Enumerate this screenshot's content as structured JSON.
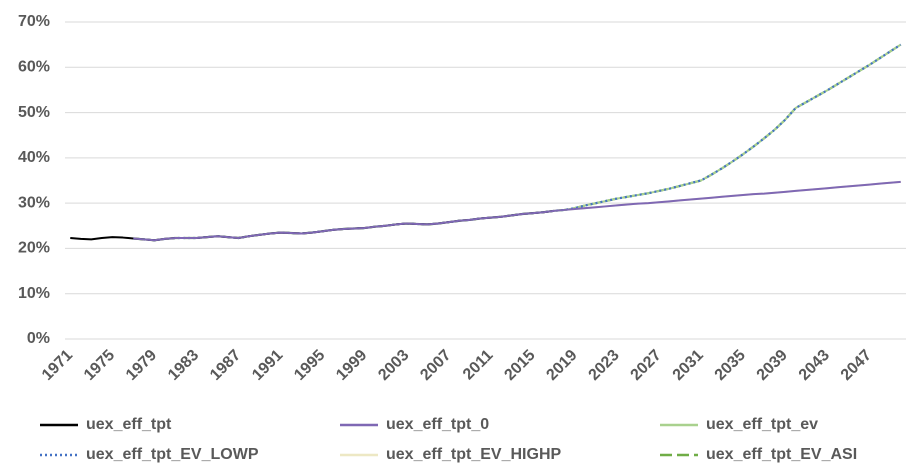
{
  "chart_data": {
    "type": "line",
    "categories": [
      "1971",
      null,
      null,
      null,
      "1975",
      null,
      null,
      null,
      "1979",
      null,
      null,
      null,
      "1983",
      null,
      null,
      null,
      "1987",
      null,
      null,
      null,
      "1991",
      null,
      null,
      null,
      "1995",
      null,
      null,
      null,
      "1999",
      null,
      null,
      null,
      "2003",
      null,
      null,
      null,
      "2007",
      null,
      null,
      null,
      "2011",
      null,
      null,
      null,
      "2015",
      null,
      null,
      null,
      "2019",
      null,
      null,
      null,
      "2023",
      null,
      null,
      null,
      "2027",
      null,
      null,
      null,
      "2031",
      null,
      null,
      null,
      "2035",
      null,
      null,
      null,
      "2039",
      null,
      null,
      null,
      "2043",
      null,
      null,
      null,
      "2047",
      null,
      null,
      null
    ],
    "ylim": [
      0,
      70
    ],
    "yticks": [
      {
        "value": 0,
        "label": "0%"
      },
      {
        "value": 10,
        "label": "10%"
      },
      {
        "value": 20,
        "label": "20%"
      },
      {
        "value": 30,
        "label": "30%"
      },
      {
        "value": 40,
        "label": "40%"
      },
      {
        "value": 50,
        "label": "50%"
      },
      {
        "value": 60,
        "label": "60%"
      },
      {
        "value": 70,
        "label": "70%"
      }
    ],
    "grid": true,
    "legend": "bottom",
    "series": [
      {
        "name": "uex_eff_tpt",
        "color": "#000000",
        "line_style": "solid",
        "values": [
          22.3,
          22.1,
          22.0,
          22.3,
          22.5,
          22.4,
          22.2,
          22.0,
          21.8,
          22.1,
          22.3,
          22.3,
          22.3,
          22.5,
          22.7,
          22.5,
          22.3,
          22.7,
          23.0,
          23.3,
          23.5,
          23.4,
          23.3,
          23.5,
          23.8,
          24.1,
          24.3,
          24.4,
          24.5,
          24.8,
          25.0,
          25.3,
          25.5,
          25.4,
          25.3,
          25.5,
          25.8,
          26.1,
          26.3,
          26.6,
          26.8,
          27.0,
          27.3,
          27.6,
          27.8,
          28.0,
          28.3,
          null,
          null,
          null,
          null,
          null,
          null,
          null,
          null,
          null,
          null,
          null,
          null,
          null,
          null,
          null,
          null,
          null,
          null,
          null,
          null,
          null,
          null,
          null,
          null,
          null,
          null,
          null,
          null,
          null,
          null,
          null,
          null,
          null
        ]
      },
      {
        "name": "uex_eff_tpt_0",
        "color": "#7f68b4",
        "line_style": "solid",
        "values": [
          null,
          null,
          null,
          null,
          null,
          null,
          22.2,
          22.0,
          21.8,
          22.1,
          22.3,
          22.3,
          22.3,
          22.5,
          22.7,
          22.5,
          22.3,
          22.7,
          23.0,
          23.3,
          23.5,
          23.4,
          23.3,
          23.5,
          23.8,
          24.1,
          24.3,
          24.4,
          24.5,
          24.8,
          25.0,
          25.3,
          25.5,
          25.4,
          25.3,
          25.5,
          25.8,
          26.1,
          26.3,
          26.6,
          26.8,
          27.0,
          27.3,
          27.6,
          27.8,
          28.0,
          28.3,
          28.5,
          28.7,
          28.9,
          29.1,
          29.3,
          29.5,
          29.7,
          29.9,
          30.0,
          30.2,
          30.4,
          30.6,
          30.8,
          31.0,
          31.2,
          31.4,
          31.6,
          31.8,
          32.0,
          32.1,
          32.3,
          32.5,
          32.7,
          32.9,
          33.1,
          33.3,
          33.5,
          33.7,
          33.9,
          34.1,
          34.3,
          34.5,
          34.7
        ]
      },
      {
        "name": "uex_eff_tpt_ev",
        "color": "#a9d18e",
        "line_style": "solid",
        "values": [
          null,
          null,
          null,
          null,
          null,
          null,
          22.2,
          22.0,
          21.8,
          22.1,
          22.3,
          22.3,
          22.3,
          22.5,
          22.7,
          22.5,
          22.3,
          22.7,
          23.0,
          23.3,
          23.5,
          23.4,
          23.3,
          23.5,
          23.8,
          24.1,
          24.3,
          24.4,
          24.5,
          24.8,
          25.0,
          25.3,
          25.5,
          25.4,
          25.3,
          25.5,
          25.8,
          26.1,
          26.3,
          26.6,
          26.8,
          27.0,
          27.3,
          27.6,
          27.8,
          28.0,
          28.3,
          28.5,
          28.9,
          29.5,
          30.0,
          30.5,
          31.0,
          31.4,
          31.8,
          32.2,
          32.7,
          33.2,
          33.8,
          34.4,
          35.0,
          36.3,
          37.7,
          39.2,
          40.8,
          42.5,
          44.3,
          46.2,
          48.4,
          51.0,
          52.3,
          53.6,
          54.9,
          56.3,
          57.7,
          59.1,
          60.5,
          62.0,
          63.5,
          65.0
        ]
      },
      {
        "name": "uex_eff_tpt_EV_LOWP",
        "color": "#4472c4",
        "line_style": "dotted",
        "values": [
          null,
          null,
          null,
          null,
          null,
          null,
          22.2,
          22.0,
          21.8,
          22.1,
          22.3,
          22.3,
          22.3,
          22.5,
          22.7,
          22.5,
          22.3,
          22.7,
          23.0,
          23.3,
          23.5,
          23.4,
          23.3,
          23.5,
          23.8,
          24.1,
          24.3,
          24.4,
          24.5,
          24.8,
          25.0,
          25.3,
          25.5,
          25.4,
          25.3,
          25.5,
          25.8,
          26.1,
          26.3,
          26.6,
          26.8,
          27.0,
          27.3,
          27.6,
          27.8,
          28.0,
          28.3,
          28.5,
          28.9,
          29.5,
          30.0,
          30.5,
          31.0,
          31.4,
          31.8,
          32.2,
          32.7,
          33.2,
          33.8,
          34.4,
          35.0,
          36.3,
          37.7,
          39.2,
          40.8,
          42.5,
          44.3,
          46.2,
          48.4,
          51.0,
          52.3,
          53.6,
          54.9,
          56.3,
          57.7,
          59.1,
          60.5,
          62.0,
          63.5,
          65.0
        ]
      },
      {
        "name": "uex_eff_tpt_EV_HIGHP",
        "color": "#ede8c4",
        "line_style": "solid",
        "values": [
          null,
          null,
          null,
          null,
          null,
          null,
          22.2,
          22.0,
          21.8,
          22.1,
          22.3,
          22.3,
          22.3,
          22.5,
          22.7,
          22.5,
          22.3,
          22.7,
          23.0,
          23.3,
          23.5,
          23.4,
          23.3,
          23.5,
          23.8,
          24.1,
          24.3,
          24.4,
          24.5,
          24.8,
          25.0,
          25.3,
          25.5,
          25.4,
          25.3,
          25.5,
          25.8,
          26.1,
          26.3,
          26.6,
          26.8,
          27.0,
          27.3,
          27.6,
          27.8,
          28.0,
          28.3,
          28.5,
          28.7,
          28.9,
          29.1,
          29.3,
          29.5,
          29.7,
          29.9,
          30.0,
          30.2,
          30.4,
          30.6,
          30.8,
          31.0,
          31.2,
          31.4,
          31.6,
          31.8,
          32.0,
          32.1,
          32.3,
          32.5,
          32.7,
          32.9,
          33.1,
          33.3,
          33.5,
          33.7,
          33.9,
          34.1,
          34.3,
          34.5,
          34.7
        ]
      },
      {
        "name": "uex_eff_tpt_EV_ASI",
        "color": "#70ad47",
        "line_style": "dashed",
        "values": [
          null,
          null,
          null,
          null,
          null,
          null,
          22.2,
          22.0,
          21.8,
          22.1,
          22.3,
          22.3,
          22.3,
          22.5,
          22.7,
          22.5,
          22.3,
          22.7,
          23.0,
          23.3,
          23.5,
          23.4,
          23.3,
          23.5,
          23.8,
          24.1,
          24.3,
          24.4,
          24.5,
          24.8,
          25.0,
          25.3,
          25.5,
          25.4,
          25.3,
          25.5,
          25.8,
          26.1,
          26.3,
          26.6,
          26.8,
          27.0,
          27.3,
          27.6,
          27.8,
          28.0,
          28.3,
          28.5,
          28.9,
          29.5,
          30.0,
          30.5,
          31.0,
          31.4,
          31.8,
          32.2,
          32.7,
          33.2,
          33.8,
          34.4,
          35.0,
          36.3,
          37.7,
          39.2,
          40.8,
          42.5,
          44.3,
          46.2,
          48.4,
          51.0,
          52.3,
          53.6,
          54.9,
          56.3,
          57.7,
          59.1,
          60.5,
          62.0,
          63.5,
          65.0
        ]
      }
    ]
  }
}
